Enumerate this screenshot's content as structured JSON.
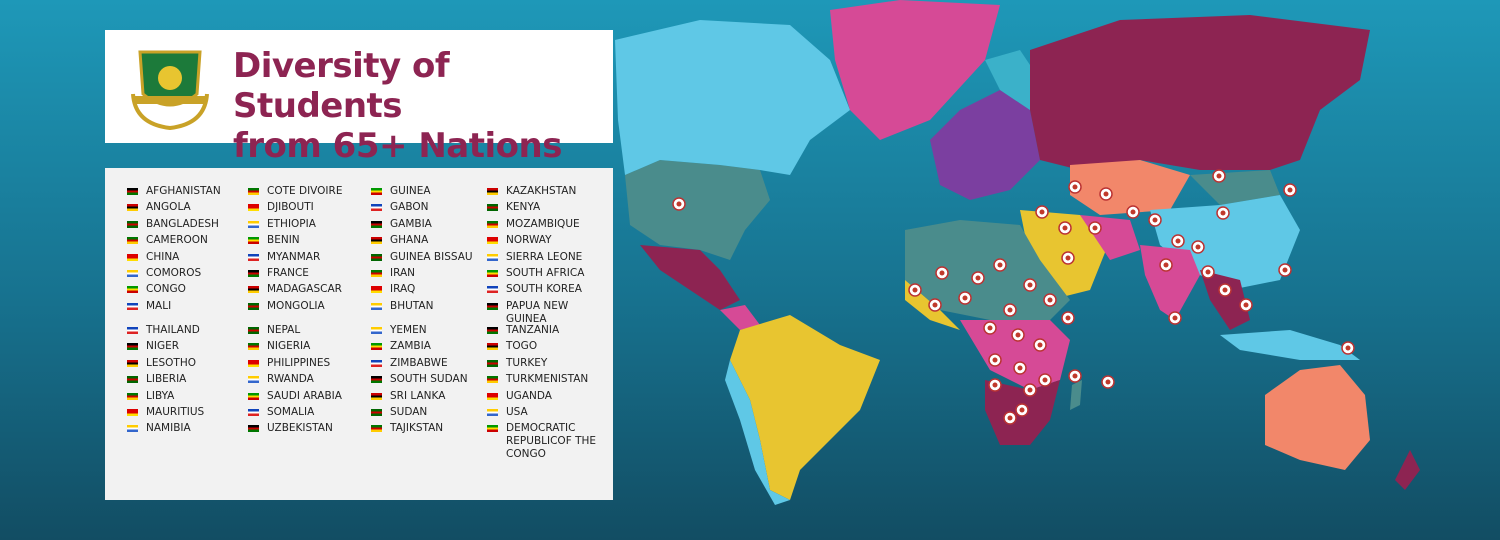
{
  "header": {
    "title_lines": [
      "Diversity of Students",
      "from 65+ Nations"
    ]
  },
  "country_blocks": [
    {
      "columns": [
        [
          "AFGHANISTAN",
          "ANGOLA",
          "BANGLADESH",
          "CAMEROON",
          "CHINA",
          "COMOROS",
          "CONGO",
          "MALI"
        ],
        [
          "COTE DIVOIRE",
          "DJIBOUTI",
          "ETHIOPIA",
          "BENIN",
          "MYANMAR",
          "FRANCE",
          "MADAGASCAR",
          "MONGOLIA"
        ],
        [
          "GUINEA",
          "GABON",
          "GAMBIA",
          "GHANA",
          "GUINEA BISSAU",
          "IRAN",
          "IRAQ",
          "BHUTAN"
        ],
        [
          "KAZAKHSTAN",
          "KENYA",
          "MOZAMBIQUE",
          "NORWAY",
          "SIERRA LEONE",
          "SOUTH AFRICA",
          "SOUTH KOREA",
          "PAPUA NEW GUINEA"
        ]
      ]
    },
    {
      "columns": [
        [
          "THAILAND",
          "NIGER",
          "LESOTHO",
          "LIBERIA",
          "LIBYA",
          "MAURITIUS",
          "NAMIBIA"
        ],
        [
          "NEPAL",
          "NIGERIA",
          "PHILIPPINES",
          "RWANDA",
          "SAUDI ARABIA",
          "SOMALIA",
          "UZBEKISTAN"
        ],
        [
          "YEMEN",
          "ZAMBIA",
          "ZIMBABWE",
          "SOUTH SUDAN",
          "SRI LANKA",
          "SUDAN",
          "TAJIKSTAN"
        ],
        [
          "TANZANIA",
          "TOGO",
          "TURKEY",
          "TURKMENISTAN",
          "UGANDA",
          "USA",
          "DEMOCRATIC REPUBLICOF THE CONGO"
        ]
      ]
    }
  ]
}
